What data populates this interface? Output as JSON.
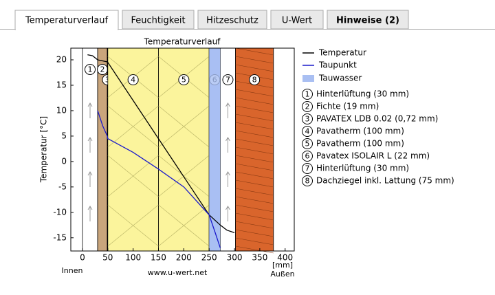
{
  "tabs": [
    {
      "label": "Temperaturverlauf"
    },
    {
      "label": "Feuchtigkeit"
    },
    {
      "label": "Hitzeschutz"
    },
    {
      "label": "U-Wert"
    },
    {
      "label": "Hinweise (2)"
    }
  ],
  "active_tab": 0,
  "chart_data": {
    "type": "line",
    "title": "Temperaturverlauf",
    "y_label": "Temperatur [°C]",
    "x_unit": "[mm]",
    "left_label": "Innen",
    "right_label": "Außen",
    "source": "www.u-wert.net",
    "xlim": [
      -23,
      418
    ],
    "ylim": [
      -17.6,
      22.3
    ],
    "xticks": [
      0,
      50,
      100,
      150,
      200,
      250,
      300,
      350,
      400
    ],
    "yticks": [
      -15,
      -10,
      -5,
      0,
      5,
      10,
      15,
      20
    ],
    "series": [
      {
        "name": "Temperatur",
        "color": "#000000",
        "x": [
          10,
          20,
          30,
          49,
          50,
          100,
          150,
          200,
          250,
          272,
          285,
          300
        ],
        "values": [
          21,
          20.8,
          20,
          19.6,
          19.5,
          12,
          4.5,
          -3,
          -10.5,
          -12.5,
          -13.5,
          -14
        ]
      },
      {
        "name": "Taupunkt",
        "color": "#1a1acc",
        "x": [
          30,
          40,
          49,
          50,
          100,
          150,
          200,
          250,
          262,
          272
        ],
        "values": [
          10,
          7,
          5,
          4.5,
          1.8,
          -1.5,
          -5,
          -10.5,
          -14,
          -17
        ]
      }
    ],
    "condensate": {
      "name": "Tauwasser",
      "color": "#a9bff2",
      "x": [
        250,
        272
      ]
    },
    "layers": [
      {
        "number": "1",
        "name": "Hinterlüftung (30 mm)",
        "start": 0,
        "end": 30,
        "color": "#ffffff"
      },
      {
        "number": "2",
        "name": "Fichte (19 mm)",
        "start": 30,
        "end": 49,
        "color": "#c9a57c"
      },
      {
        "number": "3",
        "name": "PAVATEX LDB 0.02 (0,72 mm)",
        "start": 49,
        "end": 50,
        "color": "#000000"
      },
      {
        "number": "4",
        "name": "Pavatherm (100 mm)",
        "start": 50,
        "end": 150,
        "color": "#fbf49c"
      },
      {
        "number": "5",
        "name": "Pavatherm (100 mm)",
        "start": 150,
        "end": 250,
        "color": "#fbf49c"
      },
      {
        "number": "6",
        "name": "Pavatex ISOLAIR L (22 mm)",
        "start": 250,
        "end": 272,
        "color": "#a9bff2"
      },
      {
        "number": "7",
        "name": "Hinterlüftung (30 mm)",
        "start": 272,
        "end": 302,
        "color": "#ffffff"
      },
      {
        "number": "8",
        "name": "Dachziegel inkl. Lattung (75 mm)",
        "start": 302,
        "end": 377,
        "color": "#d9652c"
      }
    ]
  }
}
